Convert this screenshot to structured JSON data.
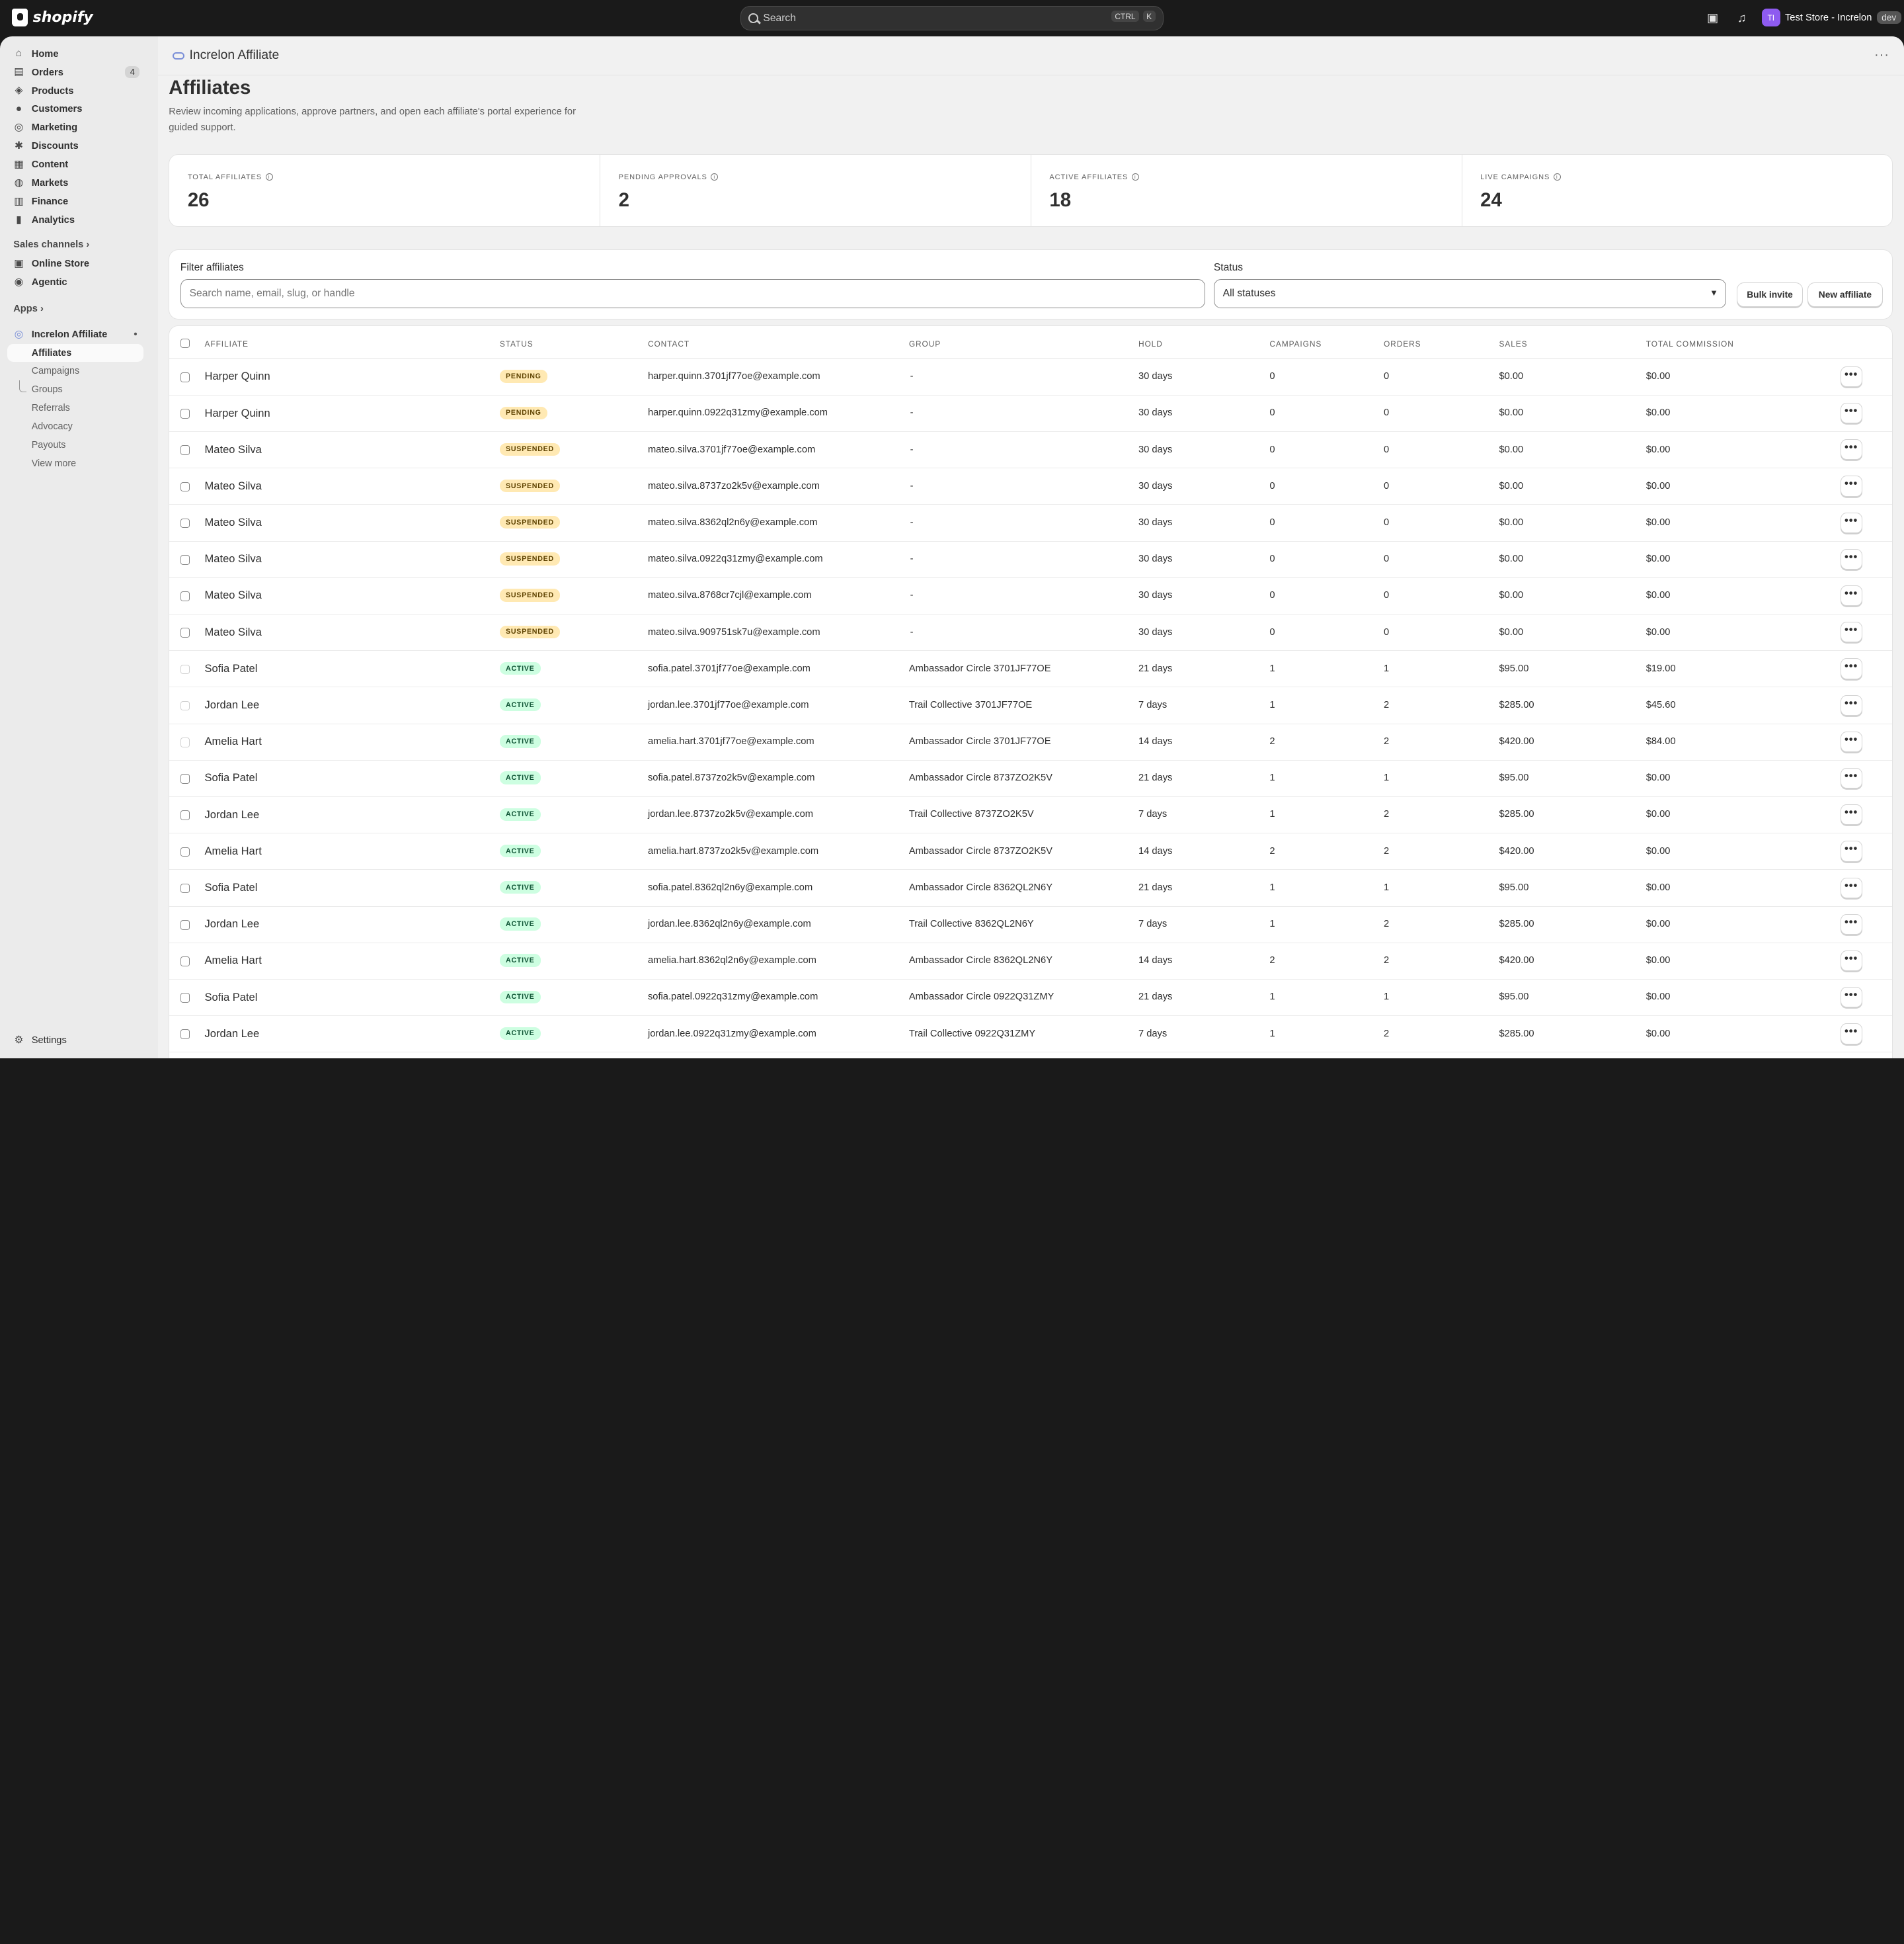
{
  "topbar": {
    "logo_text": "shopify",
    "search_placeholder": "Search",
    "kbd_ctrl": "CTRL",
    "kbd_k": "K",
    "avatar_initials": "TI",
    "store_name": "Test Store - Increlon",
    "dev_badge": "dev"
  },
  "sidebar": {
    "nav": [
      {
        "label": "Home",
        "icon": "home-icon",
        "glyph": "⌂"
      },
      {
        "label": "Orders",
        "icon": "orders-icon",
        "glyph": "▤",
        "count": "4"
      },
      {
        "label": "Products",
        "icon": "products-icon",
        "glyph": "◈"
      },
      {
        "label": "Customers",
        "icon": "customers-icon",
        "glyph": "●"
      },
      {
        "label": "Marketing",
        "icon": "marketing-icon",
        "glyph": "◎"
      },
      {
        "label": "Discounts",
        "icon": "discounts-icon",
        "glyph": "✱"
      },
      {
        "label": "Content",
        "icon": "content-icon",
        "glyph": "▦"
      },
      {
        "label": "Markets",
        "icon": "markets-icon",
        "glyph": "◍"
      },
      {
        "label": "Finance",
        "icon": "finance-icon",
        "glyph": "▥"
      },
      {
        "label": "Analytics",
        "icon": "analytics-icon",
        "glyph": "▮"
      }
    ],
    "sales_channels_label": "Sales channels",
    "channels": [
      {
        "label": "Online Store",
        "icon": "online-store-icon",
        "glyph": "▣"
      },
      {
        "label": "Agentic",
        "icon": "agentic-icon",
        "glyph": "◉"
      }
    ],
    "apps_label": "Apps",
    "app_name": "Increlon Affiliate",
    "app_items": [
      "Affiliates",
      "Campaigns",
      "Groups",
      "Referrals",
      "Advocacy",
      "Payouts",
      "View more"
    ],
    "settings_label": "Settings"
  },
  "header": {
    "app_title": "Increlon Affiliate",
    "more": "···"
  },
  "page": {
    "title": "Affiliates",
    "description": "Review incoming applications, approve partners, and open each affiliate's portal experience for guided support."
  },
  "stats": [
    {
      "label": "TOTAL AFFILIATES",
      "value": "26"
    },
    {
      "label": "PENDING APPROVALS",
      "value": "2"
    },
    {
      "label": "ACTIVE AFFILIATES",
      "value": "18"
    },
    {
      "label": "LIVE CAMPAIGNS",
      "value": "24"
    }
  ],
  "filters": {
    "search_label": "Filter affiliates",
    "search_placeholder": "Search name, email, slug, or handle",
    "status_label": "Status",
    "status_value": "All statuses",
    "bulk_invite": "Bulk invite",
    "new_affiliate": "New affiliate"
  },
  "table": {
    "columns": [
      "AFFILIATE",
      "STATUS",
      "CONTACT",
      "GROUP",
      "HOLD",
      "CAMPAIGNS",
      "ORDERS",
      "SALES",
      "TOTAL COMMISSION"
    ],
    "rows": [
      {
        "name": "Harper Quinn",
        "status": "PENDING",
        "kind": "pending",
        "contact": "harper.quinn.3701jf77oe@example.com",
        "group": "-",
        "hold": "30 days",
        "campaigns": "0",
        "orders": "0",
        "sales": "$0.00",
        "commission": "$0.00",
        "cb": "dark"
      },
      {
        "name": "Harper Quinn",
        "status": "PENDING",
        "kind": "pending",
        "contact": "harper.quinn.0922q31zmy@example.com",
        "group": "-",
        "hold": "30 days",
        "campaigns": "0",
        "orders": "0",
        "sales": "$0.00",
        "commission": "$0.00",
        "cb": "dark"
      },
      {
        "name": "Mateo Silva",
        "status": "SUSPENDED",
        "kind": "suspended",
        "contact": "mateo.silva.3701jf77oe@example.com",
        "group": "-",
        "hold": "30 days",
        "campaigns": "0",
        "orders": "0",
        "sales": "$0.00",
        "commission": "$0.00",
        "cb": "dark"
      },
      {
        "name": "Mateo Silva",
        "status": "SUSPENDED",
        "kind": "suspended",
        "contact": "mateo.silva.8737zo2k5v@example.com",
        "group": "-",
        "hold": "30 days",
        "campaigns": "0",
        "orders": "0",
        "sales": "$0.00",
        "commission": "$0.00",
        "cb": "dark"
      },
      {
        "name": "Mateo Silva",
        "status": "SUSPENDED",
        "kind": "suspended",
        "contact": "mateo.silva.8362ql2n6y@example.com",
        "group": "-",
        "hold": "30 days",
        "campaigns": "0",
        "orders": "0",
        "sales": "$0.00",
        "commission": "$0.00",
        "cb": "dark"
      },
      {
        "name": "Mateo Silva",
        "status": "SUSPENDED",
        "kind": "suspended",
        "contact": "mateo.silva.0922q31zmy@example.com",
        "group": "-",
        "hold": "30 days",
        "campaigns": "0",
        "orders": "0",
        "sales": "$0.00",
        "commission": "$0.00",
        "cb": "dark"
      },
      {
        "name": "Mateo Silva",
        "status": "SUSPENDED",
        "kind": "suspended",
        "contact": "mateo.silva.8768cr7cjl@example.com",
        "group": "-",
        "hold": "30 days",
        "campaigns": "0",
        "orders": "0",
        "sales": "$0.00",
        "commission": "$0.00",
        "cb": "dark"
      },
      {
        "name": "Mateo Silva",
        "status": "SUSPENDED",
        "kind": "suspended",
        "contact": "mateo.silva.909751sk7u@example.com",
        "group": "-",
        "hold": "30 days",
        "campaigns": "0",
        "orders": "0",
        "sales": "$0.00",
        "commission": "$0.00",
        "cb": "dark"
      },
      {
        "name": "Sofia Patel",
        "status": "ACTIVE",
        "kind": "active",
        "contact": "sofia.patel.3701jf77oe@example.com",
        "group": "Ambassador Circle 3701JF77OE",
        "hold": "21 days",
        "campaigns": "1",
        "orders": "1",
        "sales": "$95.00",
        "commission": "$19.00",
        "cb": "light"
      },
      {
        "name": "Jordan Lee",
        "status": "ACTIVE",
        "kind": "active",
        "contact": "jordan.lee.3701jf77oe@example.com",
        "group": "Trail Collective 3701JF77OE",
        "hold": "7 days",
        "campaigns": "1",
        "orders": "2",
        "sales": "$285.00",
        "commission": "$45.60",
        "cb": "light"
      },
      {
        "name": "Amelia Hart",
        "status": "ACTIVE",
        "kind": "active",
        "contact": "amelia.hart.3701jf77oe@example.com",
        "group": "Ambassador Circle 3701JF77OE",
        "hold": "14 days",
        "campaigns": "2",
        "orders": "2",
        "sales": "$420.00",
        "commission": "$84.00",
        "cb": "light"
      },
      {
        "name": "Sofia Patel",
        "status": "ACTIVE",
        "kind": "active",
        "contact": "sofia.patel.8737zo2k5v@example.com",
        "group": "Ambassador Circle 8737ZO2K5V",
        "hold": "21 days",
        "campaigns": "1",
        "orders": "1",
        "sales": "$95.00",
        "commission": "$0.00",
        "cb": "dark"
      },
      {
        "name": "Jordan Lee",
        "status": "ACTIVE",
        "kind": "active",
        "contact": "jordan.lee.8737zo2k5v@example.com",
        "group": "Trail Collective 8737ZO2K5V",
        "hold": "7 days",
        "campaigns": "1",
        "orders": "2",
        "sales": "$285.00",
        "commission": "$0.00",
        "cb": "dark"
      },
      {
        "name": "Amelia Hart",
        "status": "ACTIVE",
        "kind": "active",
        "contact": "amelia.hart.8737zo2k5v@example.com",
        "group": "Ambassador Circle 8737ZO2K5V",
        "hold": "14 days",
        "campaigns": "2",
        "orders": "2",
        "sales": "$420.00",
        "commission": "$0.00",
        "cb": "dark"
      },
      {
        "name": "Sofia Patel",
        "status": "ACTIVE",
        "kind": "active",
        "contact": "sofia.patel.8362ql2n6y@example.com",
        "group": "Ambassador Circle 8362QL2N6Y",
        "hold": "21 days",
        "campaigns": "1",
        "orders": "1",
        "sales": "$95.00",
        "commission": "$0.00",
        "cb": "dark"
      },
      {
        "name": "Jordan Lee",
        "status": "ACTIVE",
        "kind": "active",
        "contact": "jordan.lee.8362ql2n6y@example.com",
        "group": "Trail Collective 8362QL2N6Y",
        "hold": "7 days",
        "campaigns": "1",
        "orders": "2",
        "sales": "$285.00",
        "commission": "$0.00",
        "cb": "dark"
      },
      {
        "name": "Amelia Hart",
        "status": "ACTIVE",
        "kind": "active",
        "contact": "amelia.hart.8362ql2n6y@example.com",
        "group": "Ambassador Circle 8362QL2N6Y",
        "hold": "14 days",
        "campaigns": "2",
        "orders": "2",
        "sales": "$420.00",
        "commission": "$0.00",
        "cb": "dark"
      },
      {
        "name": "Sofia Patel",
        "status": "ACTIVE",
        "kind": "active",
        "contact": "sofia.patel.0922q31zmy@example.com",
        "group": "Ambassador Circle 0922Q31ZMY",
        "hold": "21 days",
        "campaigns": "1",
        "orders": "1",
        "sales": "$95.00",
        "commission": "$0.00",
        "cb": "dark"
      },
      {
        "name": "Jordan Lee",
        "status": "ACTIVE",
        "kind": "active",
        "contact": "jordan.lee.0922q31zmy@example.com",
        "group": "Trail Collective 0922Q31ZMY",
        "hold": "7 days",
        "campaigns": "1",
        "orders": "2",
        "sales": "$285.00",
        "commission": "$0.00",
        "cb": "dark"
      }
    ],
    "row_more": "•••"
  }
}
